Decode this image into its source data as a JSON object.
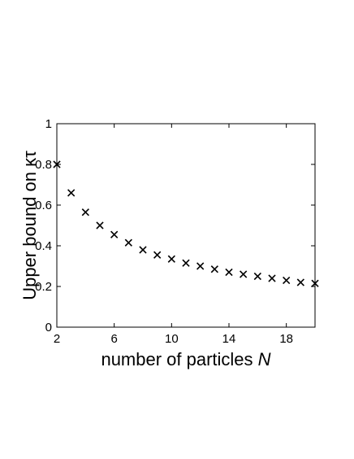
{
  "chart_data": {
    "type": "scatter",
    "xlabel_main": "number of particles ",
    "xlabel_var": "N",
    "ylabel": "Upper bound on κτ",
    "xlim": [
      2,
      20
    ],
    "ylim": [
      0,
      1
    ],
    "xticks": [
      2,
      6,
      10,
      14,
      18
    ],
    "yticks": [
      0,
      0.2,
      0.4,
      0.6,
      0.8,
      1
    ],
    "xtick_labels": [
      "2",
      "6",
      "10",
      "14",
      "18"
    ],
    "ytick_labels": [
      "0",
      "0.2",
      "0.4",
      "0.6",
      "0.8",
      "1"
    ],
    "marker": "x",
    "grid": false,
    "x": [
      2,
      3,
      4,
      5,
      6,
      7,
      8,
      9,
      10,
      11,
      12,
      13,
      14,
      15,
      16,
      17,
      18,
      19,
      20
    ],
    "y": [
      0.8,
      0.66,
      0.565,
      0.5,
      0.455,
      0.415,
      0.38,
      0.355,
      0.335,
      0.315,
      0.3,
      0.285,
      0.27,
      0.26,
      0.25,
      0.24,
      0.23,
      0.22,
      0.215
    ]
  }
}
